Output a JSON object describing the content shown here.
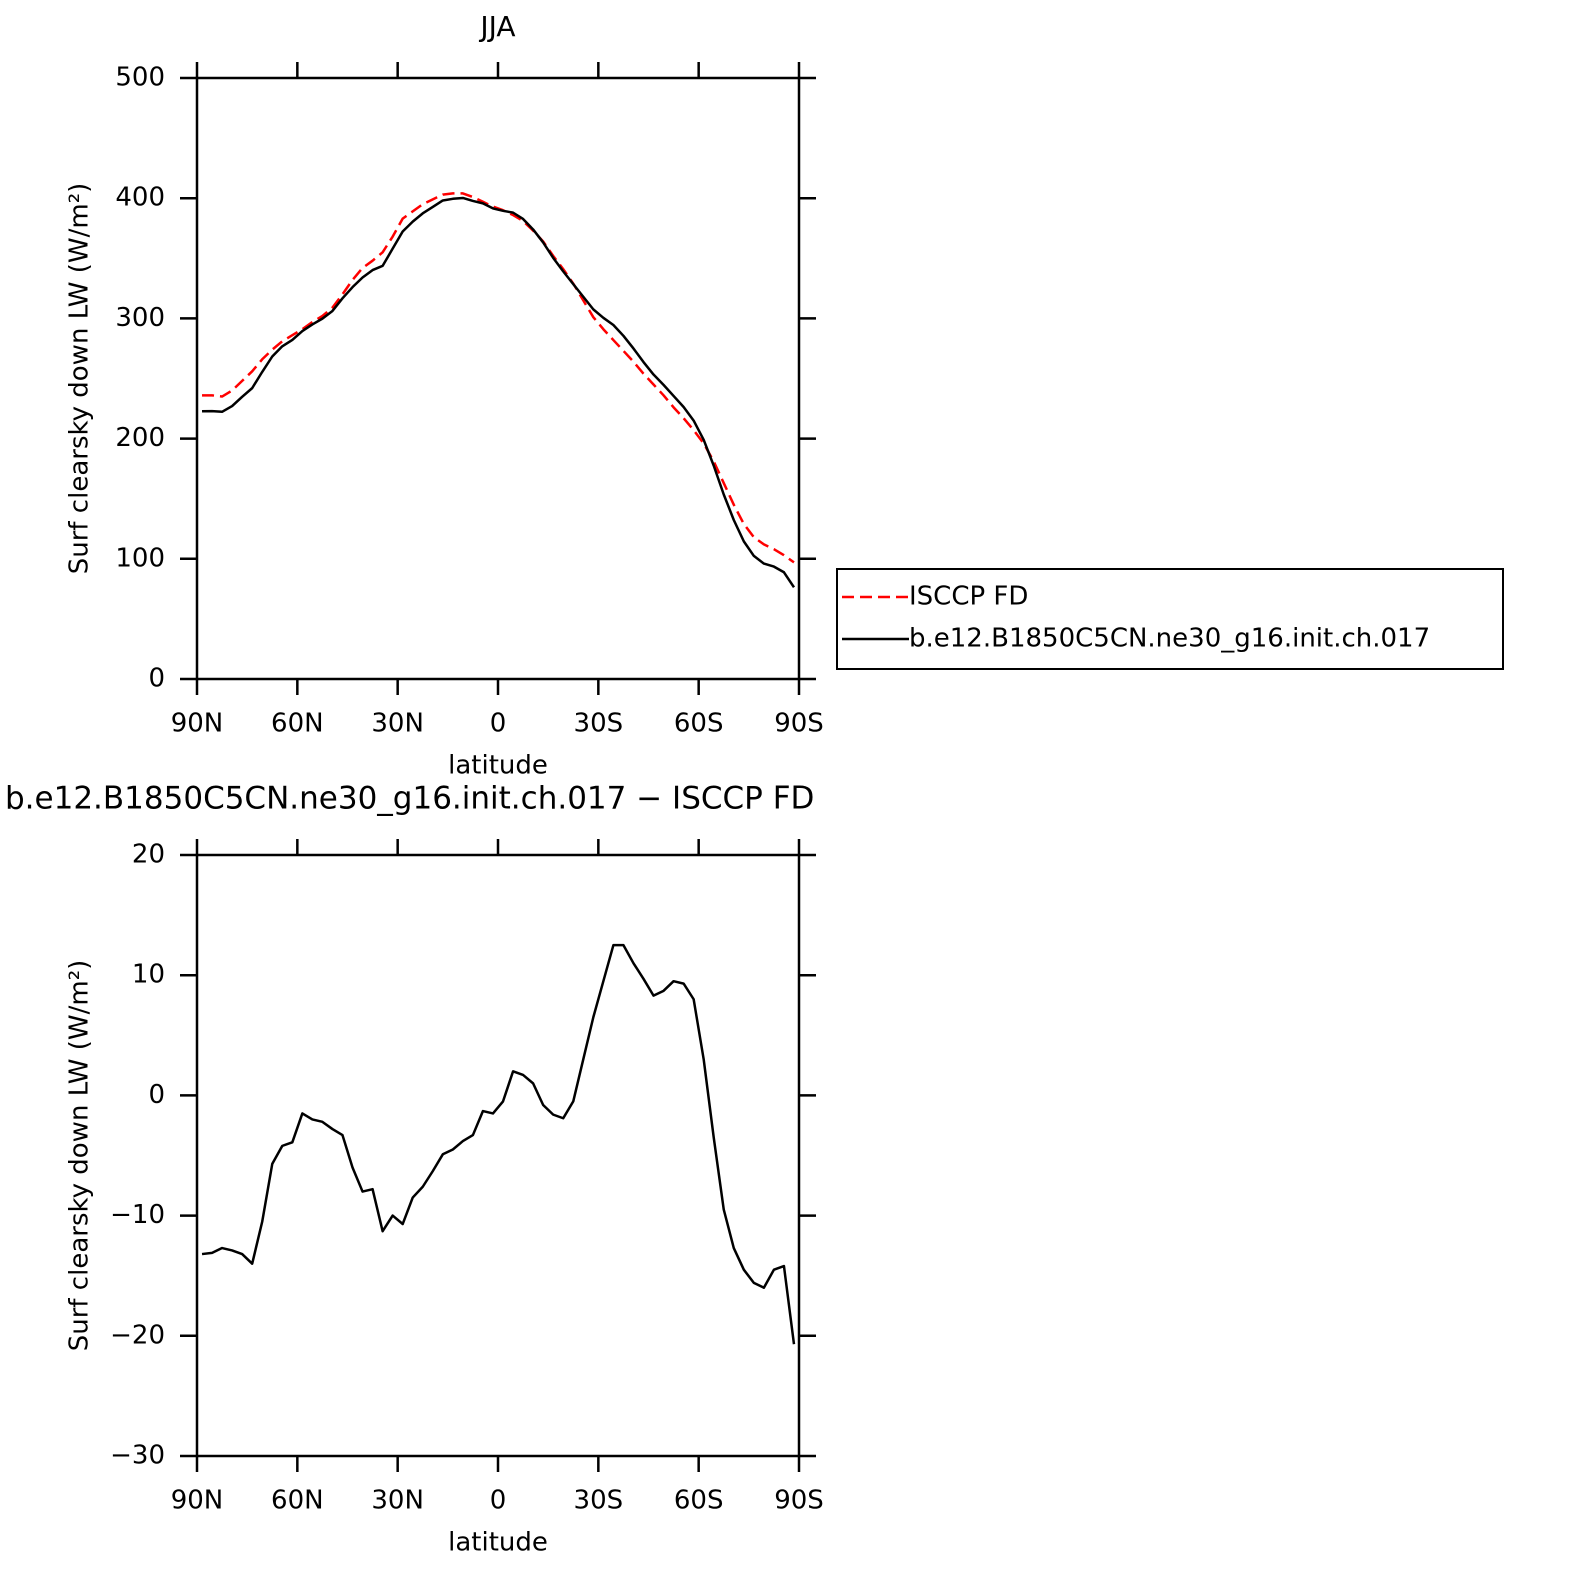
{
  "chart_data": [
    {
      "type": "line",
      "title": "JJA",
      "xlabel": "latitude",
      "ylabel": "Surf clearsky down LW (W/m²)",
      "x": [
        88.5,
        85.5,
        82.5,
        79.5,
        76.5,
        73.5,
        70.5,
        67.5,
        64.5,
        61.5,
        58.5,
        55.5,
        52.5,
        49.5,
        46.5,
        43.5,
        40.5,
        37.5,
        34.5,
        31.5,
        28.5,
        25.5,
        22.5,
        19.5,
        16.5,
        13.5,
        10.5,
        7.5,
        4.5,
        1.5,
        -1.5,
        -4.5,
        -7.5,
        -10.5,
        -13.5,
        -16.5,
        -19.5,
        -22.5,
        -25.5,
        -28.5,
        -31.5,
        -34.5,
        -37.5,
        -40.5,
        -43.5,
        -46.5,
        -49.5,
        -52.5,
        -55.5,
        -58.5,
        -61.5,
        -64.5,
        -67.5,
        -70.5,
        -73.5,
        -76.5,
        -79.5,
        -82.5,
        -85.5,
        -88.5
      ],
      "series": [
        {
          "name": "ISCCP FD",
          "color": "#ff0000",
          "linestyle": "dashed",
          "values": [
            236,
            236,
            235,
            240,
            248,
            256,
            266,
            274,
            281,
            286,
            291,
            297,
            302,
            309,
            320,
            332,
            342,
            348,
            355,
            368,
            383,
            389,
            395,
            399,
            403,
            404,
            404,
            401,
            397,
            393,
            390,
            386,
            381,
            373,
            364,
            352,
            341,
            329,
            315,
            301,
            291,
            282,
            273,
            264,
            254,
            245,
            236,
            226,
            217,
            207,
            196,
            181,
            163,
            145,
            129,
            118,
            112,
            108,
            103,
            97
          ]
        },
        {
          "name": "b.e12.B1850C5CN.ne30_g16.init.ch.017",
          "color": "#000000",
          "linestyle": "solid",
          "values": [
            222.8,
            222.9,
            222.3,
            227.1,
            234.8,
            242.0,
            255.5,
            268.3,
            276.8,
            282.1,
            289.5,
            295.0,
            299.8,
            306.2,
            316.7,
            326.0,
            334.0,
            340.2,
            343.7,
            358.0,
            372.3,
            380.5,
            387.4,
            392.7,
            398.1,
            399.5,
            400.2,
            397.7,
            395.7,
            391.5,
            389.5,
            388.0,
            382.7,
            374.0,
            363.2,
            350.4,
            339.1,
            328.5,
            318.0,
            307.5,
            300.5,
            294.5,
            285.5,
            275.0,
            263.7,
            253.3,
            244.7,
            235.5,
            226.3,
            215.0,
            199.0,
            177.5,
            153.5,
            132.3,
            114.5,
            102.4,
            96.0,
            93.5,
            88.8,
            76.3
          ]
        }
      ],
      "xlim": [
        90,
        -90
      ],
      "xticks": [
        {
          "value": 90,
          "label": "90N"
        },
        {
          "value": 60,
          "label": "60N"
        },
        {
          "value": 30,
          "label": "30N"
        },
        0,
        {
          "value": -30,
          "label": "30S"
        },
        {
          "value": -60,
          "label": "60S"
        },
        {
          "value": -90,
          "label": "90S"
        }
      ],
      "ylim": [
        0,
        500
      ],
      "yticks": [
        0,
        100,
        200,
        300,
        400,
        500
      ],
      "legend": "right"
    },
    {
      "type": "line",
      "title": "b.e12.B1850C5CN.ne30_g16.init.ch.017 − ISCCP FD",
      "xlabel": "latitude",
      "ylabel": "Surf clearsky down LW (W/m²)",
      "x": [
        88.5,
        85.5,
        82.5,
        79.5,
        76.5,
        73.5,
        70.5,
        67.5,
        64.5,
        61.5,
        58.5,
        55.5,
        52.5,
        49.5,
        46.5,
        43.5,
        40.5,
        37.5,
        34.5,
        31.5,
        28.5,
        25.5,
        22.5,
        19.5,
        16.5,
        13.5,
        10.5,
        7.5,
        4.5,
        1.5,
        -1.5,
        -4.5,
        -7.5,
        -10.5,
        -13.5,
        -16.5,
        -19.5,
        -22.5,
        -25.5,
        -28.5,
        -31.5,
        -34.5,
        -37.5,
        -40.5,
        -43.5,
        -46.5,
        -49.5,
        -52.5,
        -55.5,
        -58.5,
        -61.5,
        -64.5,
        -67.5,
        -70.5,
        -73.5,
        -76.5,
        -79.5,
        -82.5,
        -85.5,
        -88.5
      ],
      "values": [
        -13.2,
        -13.1,
        -12.7,
        -12.9,
        -13.2,
        -14.0,
        -10.5,
        -5.7,
        -4.2,
        -3.9,
        -1.5,
        -2.0,
        -2.2,
        -2.8,
        -3.3,
        -6.0,
        -8.0,
        -7.8,
        -11.3,
        -10.0,
        -10.7,
        -8.5,
        -7.6,
        -6.3,
        -4.9,
        -4.5,
        -3.8,
        -3.3,
        -1.3,
        -1.5,
        -0.5,
        2.0,
        1.7,
        1.0,
        -0.8,
        -1.6,
        -1.9,
        -0.5,
        3.0,
        6.5,
        9.5,
        12.5,
        12.5,
        11.0,
        9.7,
        8.3,
        8.7,
        9.5,
        9.3,
        8.0,
        3.0,
        -3.5,
        -9.5,
        -12.7,
        -14.5,
        -15.6,
        -16.0,
        -14.5,
        -14.2,
        -20.7
      ],
      "color": "#000000",
      "xlim": [
        90,
        -90
      ],
      "xticks": [
        {
          "value": 90,
          "label": "90N"
        },
        {
          "value": 60,
          "label": "60N"
        },
        {
          "value": 30,
          "label": "30N"
        },
        0,
        {
          "value": -30,
          "label": "30S"
        },
        {
          "value": -60,
          "label": "60S"
        },
        {
          "value": -90,
          "label": "90S"
        }
      ],
      "ylim": [
        -30,
        20
      ],
      "yticks": [
        {
          "value": -30,
          "label": "−30"
        },
        {
          "value": -20,
          "label": "−20"
        },
        {
          "value": -10,
          "label": "−10"
        },
        0,
        10,
        20
      ]
    }
  ]
}
